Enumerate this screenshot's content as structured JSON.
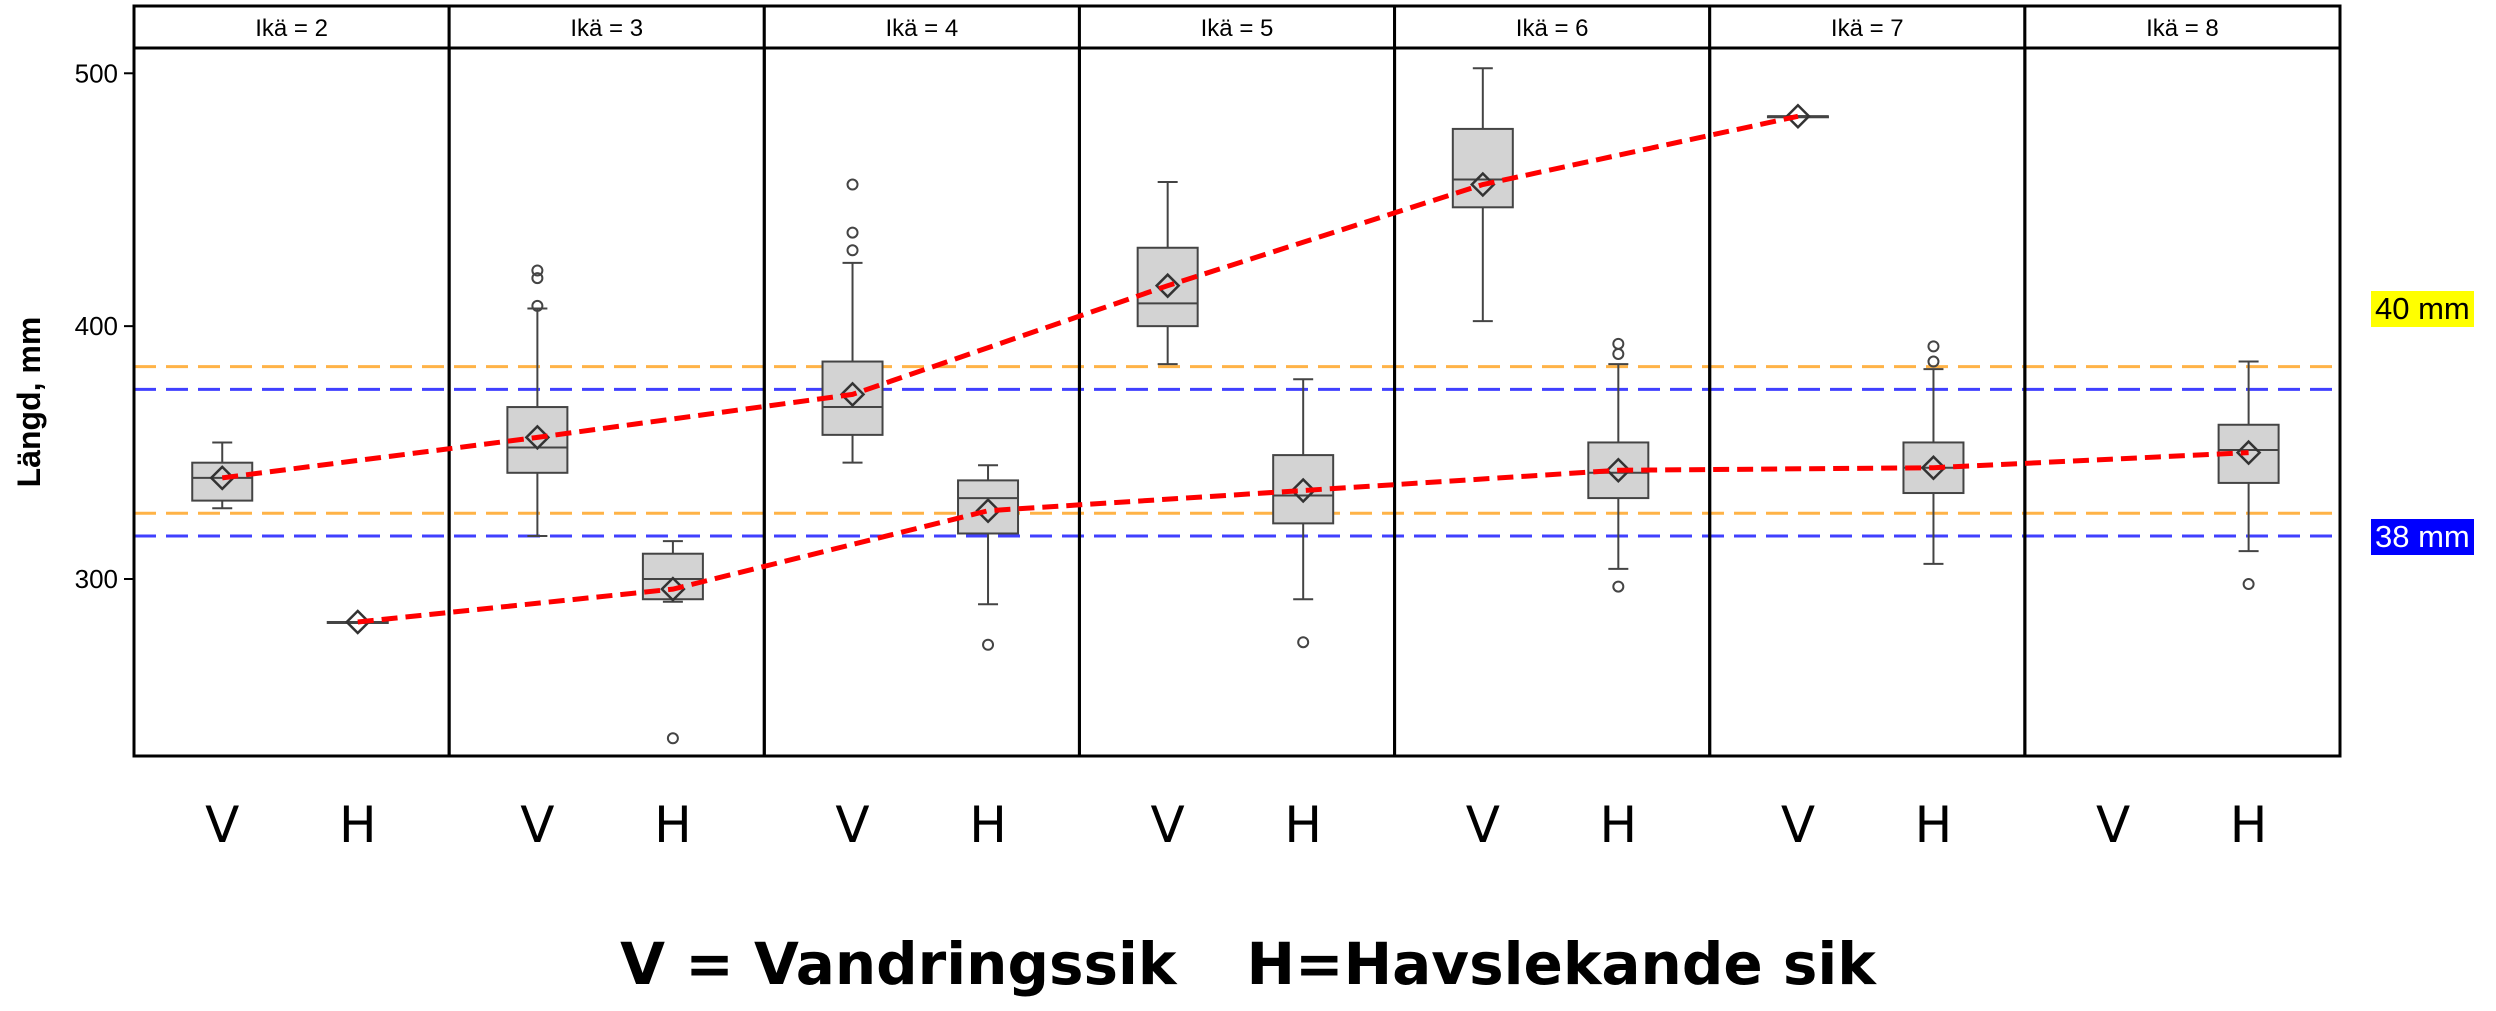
{
  "colors": {
    "box_fill": "#d3d3d3",
    "mean_line": "#ff0000",
    "ref_orange": "#ffb347",
    "ref_blue": "#4040ff",
    "label_40_bg": "#ffff00",
    "label_38_bg": "#0000ff"
  },
  "labels": {
    "ref_40": "40 mm",
    "ref_38": "38 mm",
    "caption_v": "V = Vandringssik",
    "caption_h": "H=Havslekande sik"
  },
  "chart_data": {
    "type": "boxplot",
    "ylabel": "Längd, mm",
    "ylim": [
      230,
      510
    ],
    "yticks": [
      300,
      400,
      500
    ],
    "groups": [
      "V",
      "H"
    ],
    "panels": [
      {
        "label": "Ikä = 2",
        "V": {
          "q1": 331,
          "median": 340,
          "q3": 346,
          "whisker_low": 328,
          "whisker_high": 354,
          "mean": 340,
          "outliers": []
        },
        "H": {
          "q1": 283,
          "median": 283,
          "q3": 283,
          "whisker_low": 283,
          "whisker_high": 283,
          "mean": 283,
          "outliers": []
        }
      },
      {
        "label": "Ikä = 3",
        "V": {
          "q1": 342,
          "median": 352,
          "q3": 368,
          "whisker_low": 317,
          "whisker_high": 407,
          "mean": 356,
          "outliers": [
            408,
            419,
            422
          ]
        },
        "H": {
          "q1": 292,
          "median": 300,
          "q3": 310,
          "whisker_low": 291,
          "whisker_high": 315,
          "mean": 296,
          "outliers": [
            237
          ]
        }
      },
      {
        "label": "Ikä = 4",
        "V": {
          "q1": 357,
          "median": 368,
          "q3": 386,
          "whisker_low": 346,
          "whisker_high": 425,
          "mean": 373,
          "outliers": [
            430,
            437,
            456
          ]
        },
        "H": {
          "q1": 318,
          "median": 332,
          "q3": 339,
          "whisker_low": 290,
          "whisker_high": 345,
          "mean": 327,
          "outliers": [
            274
          ]
        }
      },
      {
        "label": "Ikä = 5",
        "V": {
          "q1": 400,
          "median": 409,
          "q3": 431,
          "whisker_low": 385,
          "whisker_high": 457,
          "mean": 416,
          "outliers": []
        },
        "H": {
          "q1": 322,
          "median": 333,
          "q3": 349,
          "whisker_low": 292,
          "whisker_high": 379,
          "mean": 335,
          "outliers": [
            275
          ]
        }
      },
      {
        "label": "Ikä = 6",
        "V": {
          "q1": 447,
          "median": 458,
          "q3": 478,
          "whisker_low": 402,
          "whisker_high": 502,
          "mean": 456,
          "outliers": []
        },
        "H": {
          "q1": 332,
          "median": 342,
          "q3": 354,
          "whisker_low": 304,
          "whisker_high": 385,
          "mean": 343,
          "outliers": [
            297,
            389,
            393
          ]
        }
      },
      {
        "label": "Ikä = 7",
        "V": {
          "q1": 483,
          "median": 483,
          "q3": 483,
          "whisker_low": 483,
          "whisker_high": 483,
          "mean": 483,
          "outliers": []
        },
        "H": {
          "q1": 334,
          "median": 344,
          "q3": 354,
          "whisker_low": 306,
          "whisker_high": 383,
          "mean": 344,
          "outliers": [
            386,
            392
          ]
        }
      },
      {
        "label": "Ikä = 8",
        "V": null,
        "H": {
          "q1": 338,
          "median": 351,
          "q3": 361,
          "whisker_low": 311,
          "whisker_high": 386,
          "mean": 350,
          "outliers": [
            298
          ]
        }
      }
    ],
    "reference_lines": [
      {
        "value": 384,
        "color": "orange"
      },
      {
        "value": 375,
        "color": "blue"
      },
      {
        "value": 326,
        "color": "orange"
      },
      {
        "value": 317,
        "color": "blue"
      }
    ],
    "mean_lines": [
      {
        "group": "V",
        "values": [
          [
            2,
            340
          ],
          [
            3,
            356
          ],
          [
            4,
            373
          ],
          [
            5,
            416
          ],
          [
            6,
            456
          ],
          [
            7,
            483
          ]
        ]
      },
      {
        "group": "H",
        "values": [
          [
            2,
            283
          ],
          [
            3,
            296
          ],
          [
            4,
            327
          ],
          [
            5,
            335
          ],
          [
            6,
            343
          ],
          [
            7,
            344
          ],
          [
            8,
            350
          ]
        ]
      }
    ]
  }
}
